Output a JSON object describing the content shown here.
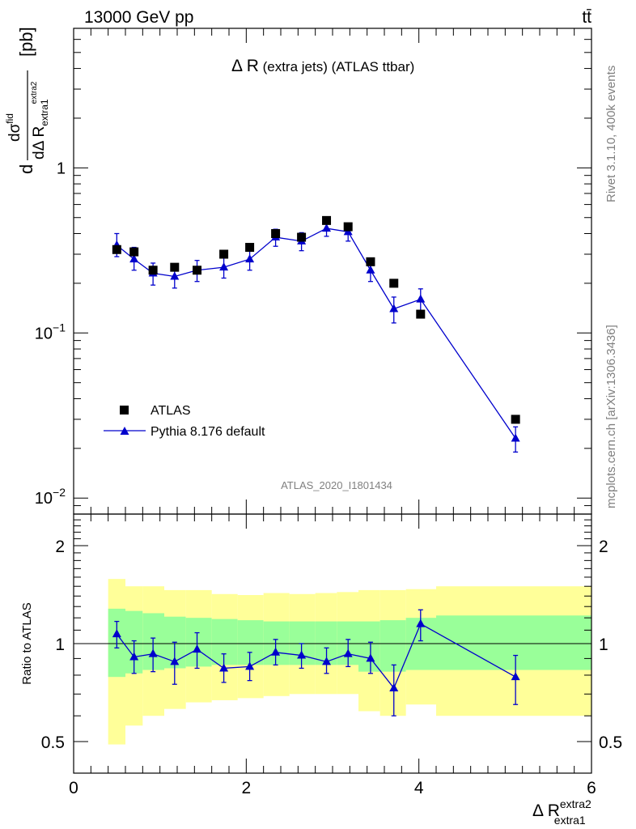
{
  "header": {
    "left": "13000 GeV pp",
    "right": "tt̄"
  },
  "side_text": {
    "rivet": "Rivet 3.1.10,  400k events",
    "mcplots": "mcplots.cern.ch [arXiv:1306.3436]"
  },
  "watermark": "ATLAS_2020_I1801434",
  "main_title": {
    "symbol": "Δ R",
    "detail": " (extra jets) (ATLAS ttbar)"
  },
  "y_axis_label": {
    "d": "d",
    "d_sigma": "dσ",
    "sigma_sup": "fid",
    "d_delta": "dΔ R",
    "sub": "extra1",
    "sup": "extra2",
    "unit": "[pb]"
  },
  "ratio_axis_label": "Ratio to ATLAS",
  "x_axis_label": {
    "base": "Δ R",
    "sup": "extra2",
    "sub": "extra1"
  },
  "legend": {
    "atlas": "ATLAS",
    "pythia": "Pythia 8.176 default"
  },
  "colors": {
    "data": "#000000",
    "mc": "#0000cc",
    "band_inner": "#99ff99",
    "band_outer": "#ffff99"
  },
  "chart_data": [
    {
      "type": "scatter",
      "log_y": true,
      "xlim": [
        0,
        6
      ],
      "ylim": [
        0.008,
        7
      ],
      "y_ticks": [
        {
          "value": 1,
          "label": "1"
        },
        {
          "value": 0.1,
          "label": "10",
          "exp": "−1"
        },
        {
          "value": 0.01,
          "label": "10",
          "exp": "−2"
        }
      ],
      "series": [
        {
          "name": "ATLAS",
          "marker": "square",
          "x": [
            0.5,
            0.7,
            0.92,
            1.17,
            1.43,
            1.74,
            2.04,
            2.34,
            2.64,
            2.93,
            3.18,
            3.44,
            3.71,
            4.02,
            5.12
          ],
          "y": [
            0.32,
            0.31,
            0.24,
            0.25,
            0.24,
            0.3,
            0.33,
            0.4,
            0.38,
            0.48,
            0.44,
            0.27,
            0.2,
            0.13,
            0.03
          ]
        },
        {
          "name": "Pythia 8.176 default",
          "marker": "triangle",
          "x": [
            0.5,
            0.7,
            0.92,
            1.17,
            1.43,
            1.74,
            2.04,
            2.34,
            2.64,
            2.93,
            3.18,
            3.44,
            3.71,
            4.02,
            5.12
          ],
          "y": [
            0.34,
            0.28,
            0.23,
            0.22,
            0.24,
            0.25,
            0.28,
            0.38,
            0.36,
            0.43,
            0.41,
            0.24,
            0.14,
            0.16,
            0.023
          ],
          "y_low": [
            0.29,
            0.24,
            0.195,
            0.187,
            0.205,
            0.215,
            0.24,
            0.335,
            0.315,
            0.385,
            0.36,
            0.205,
            0.115,
            0.135,
            0.019
          ],
          "y_high": [
            0.4,
            0.33,
            0.265,
            0.255,
            0.275,
            0.285,
            0.32,
            0.425,
            0.405,
            0.475,
            0.46,
            0.275,
            0.165,
            0.185,
            0.027
          ]
        }
      ]
    },
    {
      "type": "scatter",
      "log_y": true,
      "xlim": [
        0,
        6
      ],
      "ylim": [
        0.4,
        2.5
      ],
      "x_ticks": [
        0,
        2,
        4,
        6
      ],
      "y_ticks": [
        0.5,
        1,
        2
      ],
      "reference_line": 1,
      "bins": [
        {
          "x0": 0.4,
          "x1": 0.6,
          "inner": [
            0.79,
            1.28
          ],
          "outer": [
            0.49,
            1.58
          ]
        },
        {
          "x0": 0.6,
          "x1": 0.8,
          "inner": [
            0.81,
            1.26
          ],
          "outer": [
            0.56,
            1.5
          ]
        },
        {
          "x0": 0.8,
          "x1": 1.05,
          "inner": [
            0.83,
            1.24
          ],
          "outer": [
            0.6,
            1.5
          ]
        },
        {
          "x0": 1.05,
          "x1": 1.3,
          "inner": [
            0.84,
            1.21
          ],
          "outer": [
            0.63,
            1.46
          ]
        },
        {
          "x0": 1.3,
          "x1": 1.6,
          "inner": [
            0.85,
            1.2
          ],
          "outer": [
            0.66,
            1.46
          ]
        },
        {
          "x0": 1.6,
          "x1": 1.9,
          "inner": [
            0.86,
            1.19
          ],
          "outer": [
            0.67,
            1.42
          ]
        },
        {
          "x0": 1.9,
          "x1": 2.2,
          "inner": [
            0.86,
            1.18
          ],
          "outer": [
            0.68,
            1.41
          ]
        },
        {
          "x0": 2.2,
          "x1": 2.5,
          "inner": [
            0.86,
            1.17
          ],
          "outer": [
            0.69,
            1.43
          ]
        },
        {
          "x0": 2.5,
          "x1": 2.8,
          "inner": [
            0.86,
            1.17
          ],
          "outer": [
            0.7,
            1.42
          ]
        },
        {
          "x0": 2.8,
          "x1": 3.05,
          "inner": [
            0.86,
            1.17
          ],
          "outer": [
            0.7,
            1.43
          ]
        },
        {
          "x0": 3.05,
          "x1": 3.3,
          "inner": [
            0.86,
            1.17
          ],
          "outer": [
            0.7,
            1.44
          ]
        },
        {
          "x0": 3.3,
          "x1": 3.55,
          "inner": [
            0.82,
            1.17
          ],
          "outer": [
            0.62,
            1.46
          ]
        },
        {
          "x0": 3.55,
          "x1": 3.85,
          "inner": [
            0.82,
            1.18
          ],
          "outer": [
            0.6,
            1.46
          ]
        },
        {
          "x0": 3.85,
          "x1": 4.2,
          "inner": [
            0.83,
            1.2
          ],
          "outer": [
            0.65,
            1.47
          ]
        },
        {
          "x0": 4.2,
          "x1": 6.0,
          "inner": [
            0.83,
            1.22
          ],
          "outer": [
            0.6,
            1.5
          ]
        }
      ],
      "series": [
        {
          "name": "Pythia 8.176 default",
          "marker": "triangle",
          "x": [
            0.5,
            0.7,
            0.92,
            1.17,
            1.43,
            1.74,
            2.04,
            2.34,
            2.64,
            2.93,
            3.18,
            3.44,
            3.71,
            4.02,
            5.12
          ],
          "y": [
            1.07,
            0.91,
            0.93,
            0.88,
            0.96,
            0.84,
            0.85,
            0.94,
            0.92,
            0.88,
            0.93,
            0.9,
            0.73,
            1.15,
            0.79
          ],
          "y_low": [
            0.97,
            0.81,
            0.82,
            0.75,
            0.84,
            0.76,
            0.77,
            0.86,
            0.84,
            0.81,
            0.85,
            0.81,
            0.6,
            1.02,
            0.65
          ],
          "y_high": [
            1.17,
            1.02,
            1.04,
            1.01,
            1.08,
            0.93,
            0.94,
            1.03,
            1.0,
            0.97,
            1.03,
            1.01,
            0.86,
            1.27,
            0.92
          ]
        }
      ]
    }
  ]
}
